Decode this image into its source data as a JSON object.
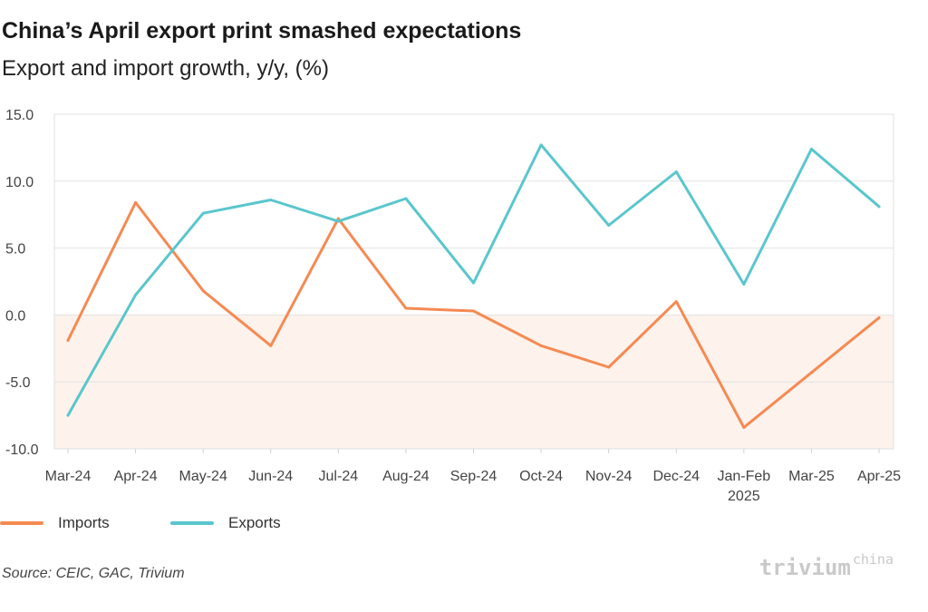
{
  "title": "China’s April export print smashed expectations",
  "subtitle": "Export and import growth, y/y, (%)",
  "source": "Source: CEIC, GAC, Trivium",
  "logo": {
    "main": "trivium",
    "sup": "china"
  },
  "chart_data": {
    "type": "line",
    "x": [
      "Mar-24",
      "Apr-24",
      "May-24",
      "Jun-24",
      "Jul-24",
      "Aug-24",
      "Sep-24",
      "Oct-24",
      "Nov-24",
      "Dec-24",
      "Jan-Feb 2025",
      "Mar-25",
      "Apr-25"
    ],
    "x_labels": [
      [
        "Mar-24"
      ],
      [
        "Apr-24"
      ],
      [
        "May-24"
      ],
      [
        "Jun-24"
      ],
      [
        "Jul-24"
      ],
      [
        "Aug-24"
      ],
      [
        "Sep-24"
      ],
      [
        "Oct-24"
      ],
      [
        "Nov-24"
      ],
      [
        "Dec-24"
      ],
      [
        "Jan-Feb",
        "2025"
      ],
      [
        "Mar-25"
      ],
      [
        "Apr-25"
      ]
    ],
    "y_ticks": [
      "15.0",
      "10.0",
      "5.0",
      "0.0",
      "-5.0",
      "-10.0"
    ],
    "ylim": [
      -10,
      15
    ],
    "negative_region_shaded": true,
    "grid": true,
    "legend_position": "bottom-left",
    "series": [
      {
        "name": "Imports",
        "color": "#f58a52",
        "values": [
          -1.9,
          8.4,
          1.8,
          -2.3,
          7.2,
          0.5,
          0.3,
          -2.3,
          -3.9,
          1.0,
          -8.4,
          -4.3,
          -0.2
        ]
      },
      {
        "name": "Exports",
        "color": "#5ac6cd",
        "values": [
          -7.5,
          1.5,
          7.6,
          8.6,
          7.0,
          8.7,
          2.4,
          12.7,
          6.7,
          10.7,
          2.3,
          12.4,
          8.1
        ]
      }
    ]
  }
}
